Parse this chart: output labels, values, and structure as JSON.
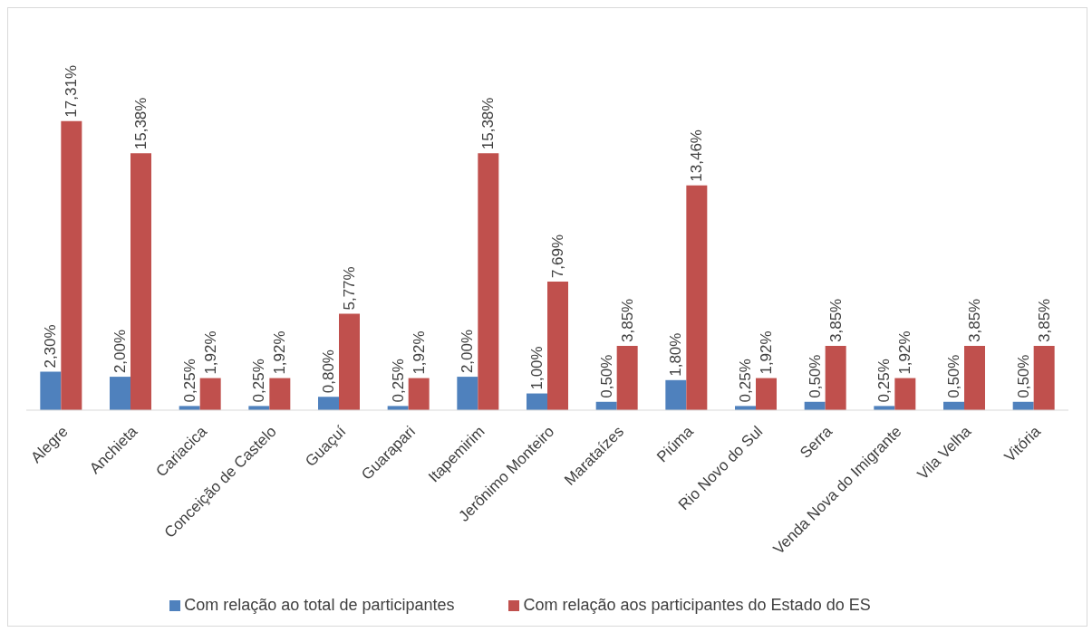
{
  "chart_data": {
    "type": "bar",
    "categories": [
      "Alegre",
      "Anchieta",
      "Cariacica",
      "Conceição de Castelo",
      "Guaçuí",
      "Guarapari",
      "Itapemirim",
      "Jerônimo Monteiro",
      "Marataízes",
      "Piúma",
      "Rio Novo do Sul",
      "Serra",
      "Venda Nova do Imigrante",
      "Vila Velha",
      "Vitória"
    ],
    "series": [
      {
        "name": "Com relação ao total de participantes",
        "color": "#4f81bd",
        "values": [
          2.3,
          2.0,
          0.25,
          0.25,
          0.8,
          0.25,
          2.0,
          1.0,
          0.5,
          1.8,
          0.25,
          0.5,
          0.25,
          0.5,
          0.5
        ],
        "value_labels": [
          "2,30%",
          "2,00%",
          "0,25%",
          "0,25%",
          "0,80%",
          "0,25%",
          "2,00%",
          "1,00%",
          "0,50%",
          "1,80%",
          "0,25%",
          "0,50%",
          "0,25%",
          "0,50%",
          "0,50%"
        ]
      },
      {
        "name": "Com relação aos participantes do Estado do ES",
        "color": "#c0504d",
        "values": [
          17.31,
          15.38,
          1.92,
          1.92,
          5.77,
          1.92,
          15.38,
          7.69,
          3.85,
          13.46,
          1.92,
          3.85,
          1.92,
          3.85,
          3.85
        ],
        "value_labels": [
          "17,31%",
          "15,38%",
          "1,92%",
          "1,92%",
          "5,77%",
          "1,92%",
          "15,38%",
          "7,69%",
          "3,85%",
          "13,46%",
          "1,92%",
          "3,85%",
          "1,92%",
          "3,85%",
          "3,85%"
        ]
      }
    ],
    "legend": "bottom"
  }
}
